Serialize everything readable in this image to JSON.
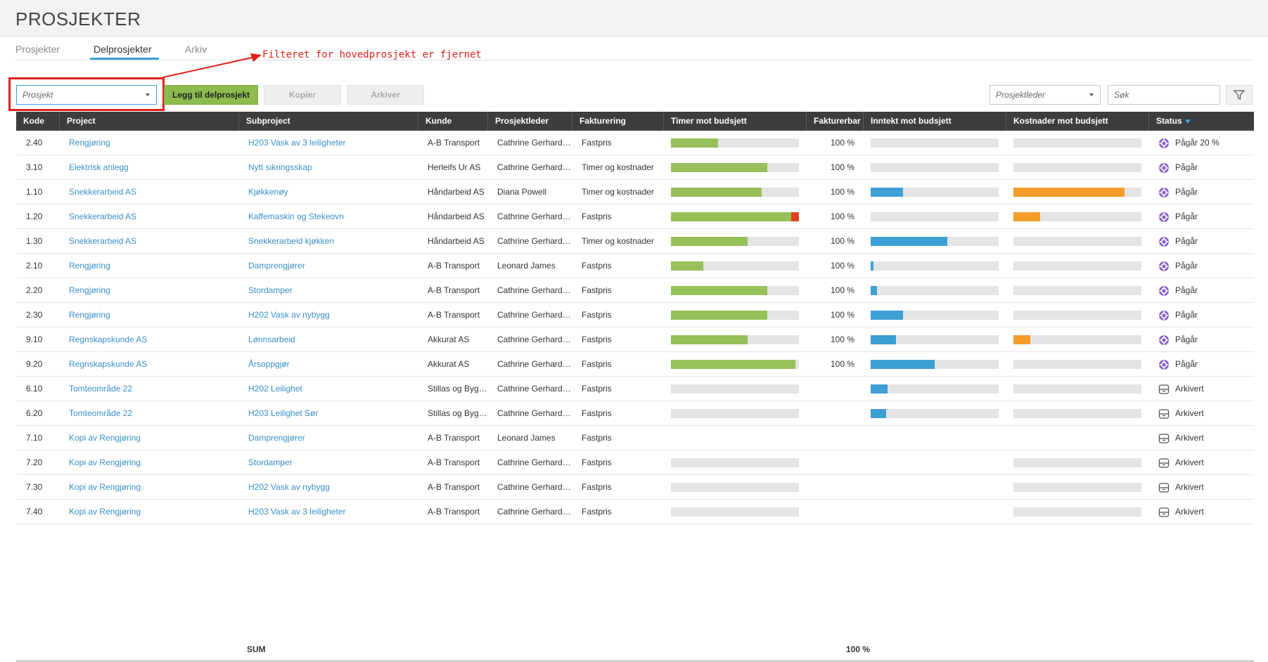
{
  "header": {
    "title": "PROSJEKTER"
  },
  "tabs": [
    {
      "label": "Prosjekter"
    },
    {
      "label": "Delprosjekter"
    },
    {
      "label": "Arkiv"
    }
  ],
  "annotation": {
    "text": "Filteret for hovedprosjekt er fjernet",
    "color": "#e0201c"
  },
  "toolbar": {
    "project_placeholder": "Prosjekt",
    "add_label": "Legg til delprosjekt",
    "copy_label": "Kopier",
    "archive_label": "Arkiver",
    "leader_placeholder": "Prosjektleder",
    "search_placeholder": "Søk"
  },
  "table": {
    "columns": [
      "Kode",
      "Project",
      "Subproject",
      "Kunde",
      "Prosjektleder",
      "Fakturering",
      "Timer mot budsjett",
      "Fakturerbar",
      "Inntekt mot budsjett",
      "Kostnader mot budsjett",
      "Status"
    ],
    "rows": [
      {
        "kode": "2.40",
        "project": "Rengjøring",
        "subproject": "H203 Vask av 3 leiligheter",
        "kunde": "A-B Transport",
        "leder": "Cathrine Gerhardsen",
        "fakturering": "Fastpris",
        "timer": 0.37,
        "timer_over": 0,
        "fakturerbar": "100 %",
        "inntekt": 0,
        "kostnader": 0,
        "status": "Pågår 20 %",
        "status_type": "active",
        "show_timer": true,
        "show_inntekt": true,
        "show_kostnader": true
      },
      {
        "kode": "3.10",
        "project": "Elektrisk anlegg",
        "subproject": "Nytt sikringsskap",
        "kunde": "Herleifs Ur AS",
        "leder": "Cathrine Gerhardsen",
        "fakturering": "Timer og kostnader",
        "timer": 0.75,
        "timer_over": 0,
        "fakturerbar": "100 %",
        "inntekt": 0,
        "kostnader": 0,
        "status": "Pågår",
        "status_type": "active",
        "show_timer": true,
        "show_inntekt": true,
        "show_kostnader": true
      },
      {
        "kode": "1.10",
        "project": "Snekkerarbeid AS",
        "subproject": "Kjøkkenøy",
        "kunde": "Håndarbeid AS",
        "leder": "Diana Powell",
        "fakturering": "Timer og kostnader",
        "timer": 0.71,
        "timer_over": 0,
        "fakturerbar": "100 %",
        "inntekt": 0.25,
        "kostnader": 0.87,
        "status": "Pågår",
        "status_type": "active",
        "show_timer": true,
        "show_inntekt": true,
        "show_kostnader": true
      },
      {
        "kode": "1.20",
        "project": "Snekkerarbeid AS",
        "subproject": "Kaffemaskin og Stekeovn",
        "kunde": "Håndarbeid AS",
        "leder": "Cathrine Gerhardsen",
        "fakturering": "Fastpris",
        "timer": 0.94,
        "timer_over": 0.06,
        "fakturerbar": "100 %",
        "inntekt": 0,
        "kostnader": 0.21,
        "status": "Pågår",
        "status_type": "active",
        "show_timer": true,
        "show_inntekt": true,
        "show_kostnader": true
      },
      {
        "kode": "1.30",
        "project": "Snekkerarbeid AS",
        "subproject": "Snekkerarbeid kjøkken",
        "kunde": "Håndarbeid AS",
        "leder": "Cathrine Gerhardsen",
        "fakturering": "Timer og kostnader",
        "timer": 0.6,
        "timer_over": 0,
        "fakturerbar": "100 %",
        "inntekt": 0.6,
        "kostnader": 0,
        "status": "Pågår",
        "status_type": "active",
        "show_timer": true,
        "show_inntekt": true,
        "show_kostnader": true
      },
      {
        "kode": "2.10",
        "project": "Rengjøring",
        "subproject": "Damprengjører",
        "kunde": "A-B Transport",
        "leder": "Leonard James",
        "fakturering": "Fastpris",
        "timer": 0.25,
        "timer_over": 0,
        "fakturerbar": "100 %",
        "inntekt": 0.02,
        "kostnader": 0,
        "status": "Pågår",
        "status_type": "active",
        "show_timer": true,
        "show_inntekt": true,
        "show_kostnader": true
      },
      {
        "kode": "2.20",
        "project": "Rengjøring",
        "subproject": "Stordamper",
        "kunde": "A-B Transport",
        "leder": "Cathrine Gerhardsen",
        "fakturering": "Fastpris",
        "timer": 0.75,
        "timer_over": 0,
        "fakturerbar": "100 %",
        "inntekt": 0.05,
        "kostnader": 0,
        "status": "Pågår",
        "status_type": "active",
        "show_timer": true,
        "show_inntekt": true,
        "show_kostnader": true
      },
      {
        "kode": "2.30",
        "project": "Rengjøring",
        "subproject": "H202 Vask av nybygg",
        "kunde": "A-B Transport",
        "leder": "Cathrine Gerhardsen",
        "fakturering": "Fastpris",
        "timer": 0.75,
        "timer_over": 0,
        "fakturerbar": "100 %",
        "inntekt": 0.25,
        "kostnader": 0,
        "status": "Pågår",
        "status_type": "active",
        "show_timer": true,
        "show_inntekt": true,
        "show_kostnader": true
      },
      {
        "kode": "9.10",
        "project": "Regnskapskunde AS",
        "subproject": "Lønnsarbeid",
        "kunde": "Akkurat AS",
        "leder": "Cathrine Gerhardsen",
        "fakturering": "Fastpris",
        "timer": 0.6,
        "timer_over": 0,
        "fakturerbar": "100 %",
        "inntekt": 0.2,
        "kostnader": 0.13,
        "status": "Pågår",
        "status_type": "active",
        "show_timer": true,
        "show_inntekt": true,
        "show_kostnader": true
      },
      {
        "kode": "9.20",
        "project": "Regnskapskunde AS",
        "subproject": "Årsoppgjør",
        "kunde": "Akkurat AS",
        "leder": "Cathrine Gerhardsen",
        "fakturering": "Fastpris",
        "timer": 0.97,
        "timer_over": 0,
        "fakturerbar": "100 %",
        "inntekt": 0.5,
        "kostnader": 0,
        "status": "Pågår",
        "status_type": "active",
        "show_timer": true,
        "show_inntekt": true,
        "show_kostnader": true
      },
      {
        "kode": "6.10",
        "project": "Tomteområde 22",
        "subproject": "H202 Leilighet",
        "kunde": "Stillas og Bygg AS",
        "leder": "Cathrine Gerhardsen",
        "fakturering": "Fastpris",
        "timer": 0,
        "timer_over": 0,
        "fakturerbar": "",
        "inntekt": 0.13,
        "kostnader": 0,
        "status": "Arkivert",
        "status_type": "archived",
        "show_timer": true,
        "show_inntekt": true,
        "show_kostnader": true
      },
      {
        "kode": "6.20",
        "project": "Tomteområde 22",
        "subproject": "H203 Leilighet Sør",
        "kunde": "Stillas og Bygg AS",
        "leder": "Cathrine Gerhardsen",
        "fakturering": "Fastpris",
        "timer": 0,
        "timer_over": 0,
        "fakturerbar": "",
        "inntekt": 0.12,
        "kostnader": 0,
        "status": "Arkivert",
        "status_type": "archived",
        "show_timer": true,
        "show_inntekt": true,
        "show_kostnader": true
      },
      {
        "kode": "7.10",
        "project": "Kopi av Rengjøring",
        "subproject": "Damprengjører",
        "kunde": "A-B Transport",
        "leder": "Leonard James",
        "fakturering": "Fastpris",
        "timer": 0,
        "timer_over": 0,
        "fakturerbar": "",
        "inntekt": 0,
        "kostnader": 0,
        "status": "Arkivert",
        "status_type": "archived",
        "show_timer": false,
        "show_inntekt": false,
        "show_kostnader": false
      },
      {
        "kode": "7.20",
        "project": "Kopi av Rengjøring",
        "subproject": "Stordamper",
        "kunde": "A-B Transport",
        "leder": "Cathrine Gerhardsen",
        "fakturering": "Fastpris",
        "timer": 0,
        "timer_over": 0,
        "fakturerbar": "",
        "inntekt": 0,
        "kostnader": 0,
        "status": "Arkivert",
        "status_type": "archived",
        "show_timer": true,
        "show_inntekt": false,
        "show_kostnader": true
      },
      {
        "kode": "7.30",
        "project": "Kopi av Rengjøring",
        "subproject": "H202 Vask av nybygg",
        "kunde": "A-B Transport",
        "leder": "Cathrine Gerhardsen",
        "fakturering": "Fastpris",
        "timer": 0,
        "timer_over": 0,
        "fakturerbar": "",
        "inntekt": 0,
        "kostnader": 0,
        "status": "Arkivert",
        "status_type": "archived",
        "show_timer": true,
        "show_inntekt": false,
        "show_kostnader": true
      },
      {
        "kode": "7.40",
        "project": "Kopi av Rengjøring",
        "subproject": "H203 Vask av 3 leiligheter",
        "kunde": "A-B Transport",
        "leder": "Cathrine Gerhardsen",
        "fakturering": "Fastpris",
        "timer": 0,
        "timer_over": 0,
        "fakturerbar": "",
        "inntekt": 0,
        "kostnader": 0,
        "status": "Arkivert",
        "status_type": "archived",
        "show_timer": true,
        "show_inntekt": false,
        "show_kostnader": true
      }
    ],
    "sum_label": "SUM",
    "sum_fakturerbar": "100 %"
  },
  "colors": {
    "accent": "#3aa0d8",
    "bar_green": "#96c05a",
    "bar_blue": "#3d9fd4",
    "bar_orange": "#f59c2a",
    "bar_over": "#e0401e",
    "header_dark": "#3d3d3d"
  }
}
